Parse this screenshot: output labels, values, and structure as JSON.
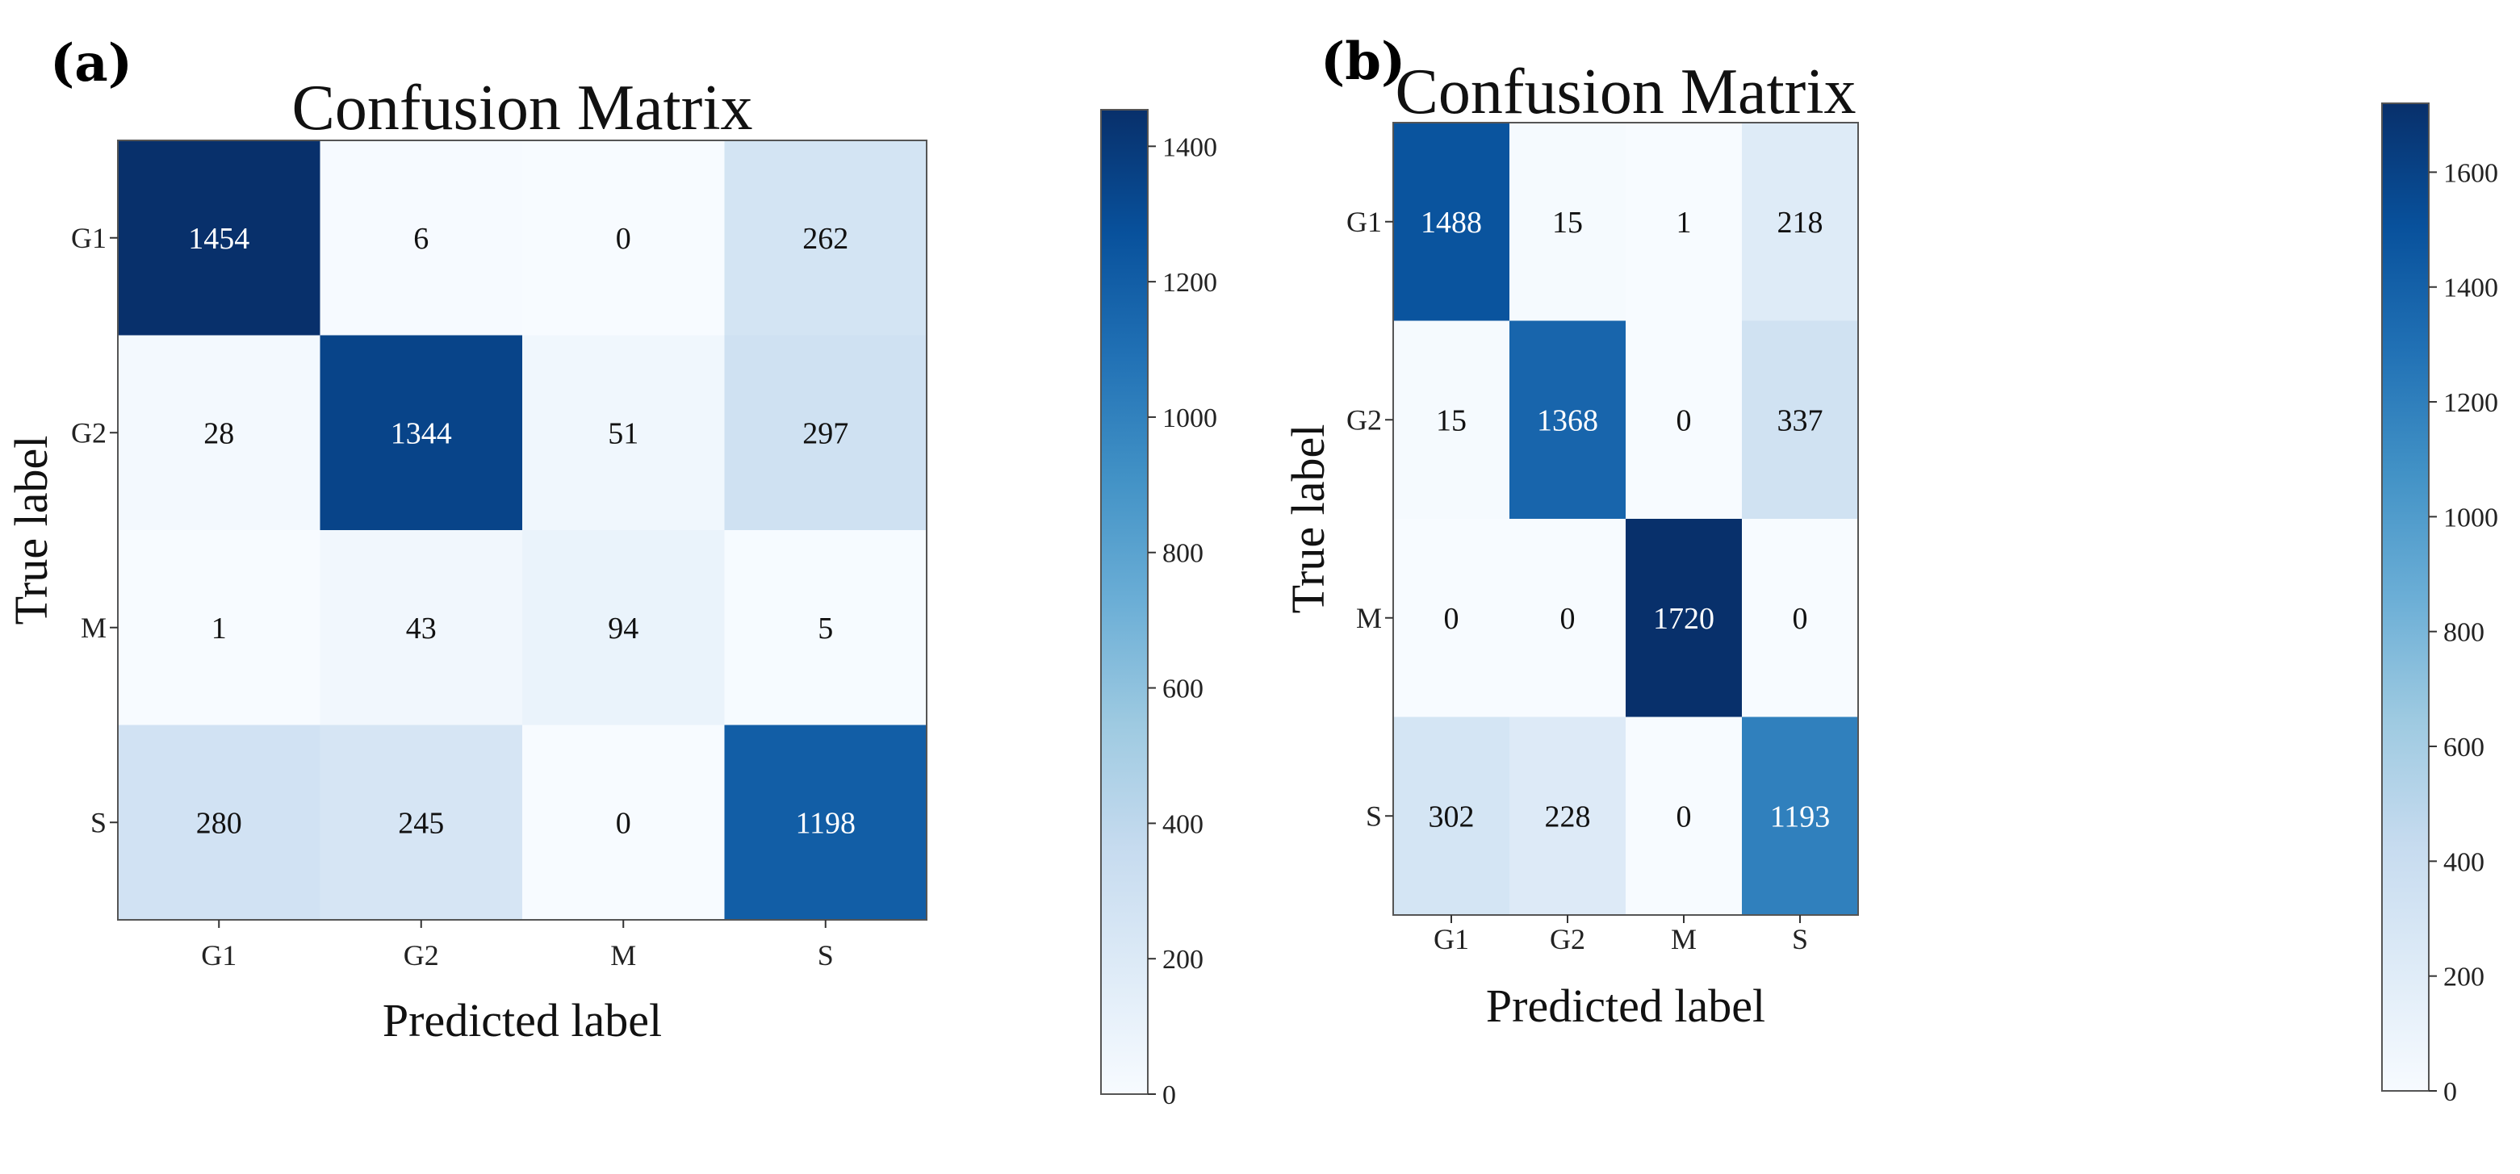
{
  "chart_data": [
    {
      "type": "heatmap",
      "panel_label": "(a)",
      "title": "Confusion Matrix",
      "xlabel": "Predicted label",
      "ylabel": "True label",
      "x_categories": [
        "G1",
        "G2",
        "M",
        "S"
      ],
      "y_categories": [
        "G1",
        "G2",
        "M",
        "S"
      ],
      "values": [
        [
          1454,
          6,
          0,
          262
        ],
        [
          28,
          1344,
          51,
          297
        ],
        [
          1,
          43,
          94,
          5
        ],
        [
          280,
          245,
          0,
          1198
        ]
      ],
      "colorbar": {
        "min": 0,
        "max": 1454,
        "ticks": [
          0,
          200,
          400,
          600,
          800,
          1000,
          1200,
          1400
        ]
      },
      "colormap": {
        "low": "#f7fbff",
        "high": "#08306b"
      }
    },
    {
      "type": "heatmap",
      "panel_label": "(b)",
      "title": "Confusion Matrix",
      "xlabel": "Predicted label",
      "ylabel": "True label",
      "x_categories": [
        "G1",
        "G2",
        "M",
        "S"
      ],
      "y_categories": [
        "G1",
        "G2",
        "M",
        "S"
      ],
      "values": [
        [
          1488,
          15,
          1,
          218
        ],
        [
          15,
          1368,
          0,
          337
        ],
        [
          0,
          0,
          1720,
          0
        ],
        [
          302,
          228,
          0,
          1193
        ]
      ],
      "colorbar": {
        "min": 0,
        "max": 1720,
        "ticks": [
          0,
          200,
          400,
          600,
          800,
          1000,
          1200,
          1400,
          1600
        ]
      },
      "colormap": {
        "low": "#f7fbff",
        "high": "#08306b"
      }
    }
  ]
}
